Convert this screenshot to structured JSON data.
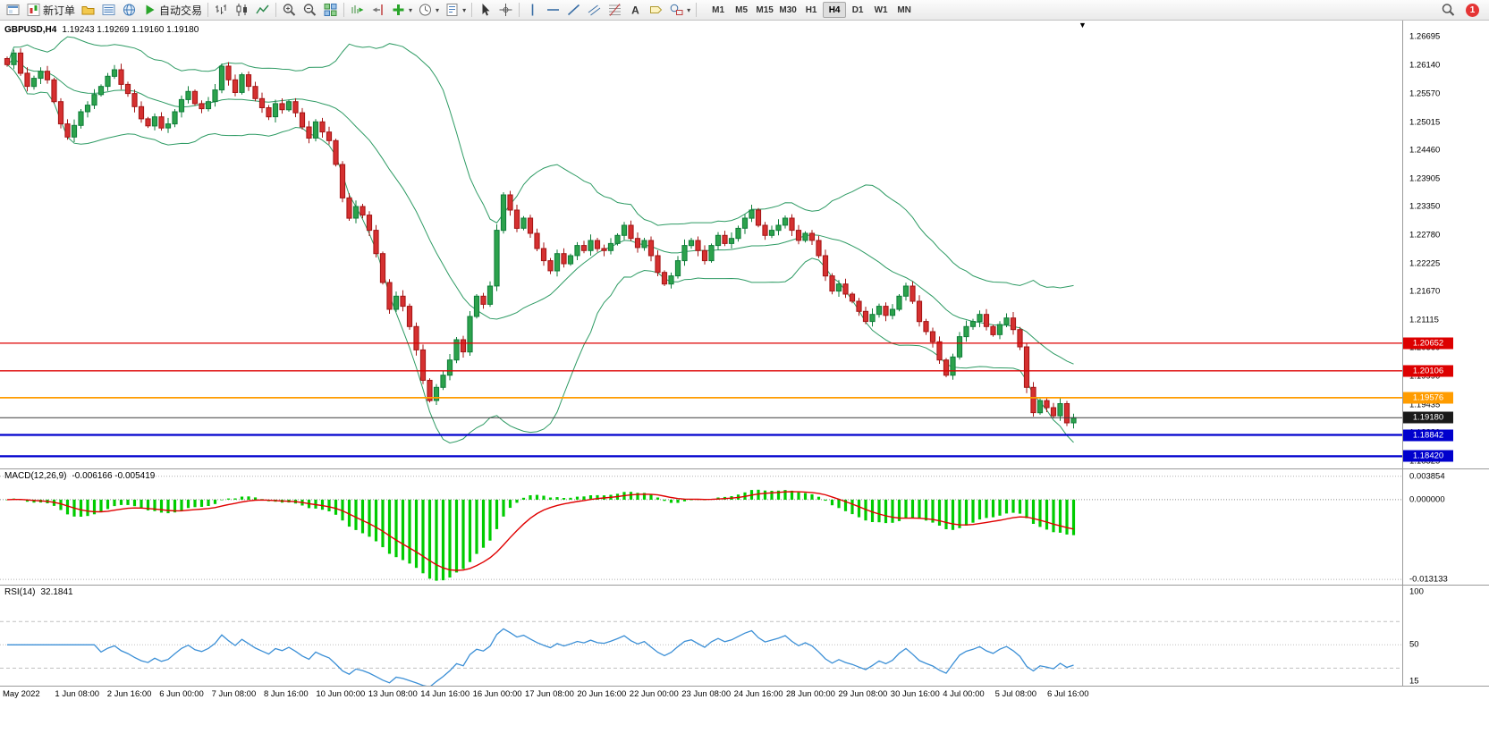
{
  "toolbar": {
    "caret_glyph": "▾",
    "notification_count": "1",
    "timeframes": [
      "M1",
      "M5",
      "M15",
      "M30",
      "H1",
      "H4",
      "D1",
      "W1",
      "MN"
    ],
    "active_timeframe": "H4",
    "items": [
      {
        "name": "terminal-button",
        "icon": "terminal"
      },
      {
        "name": "new-order-button",
        "icon": "newOrder",
        "label": "新订单"
      },
      {
        "name": "profiles-button",
        "icon": "profiles"
      },
      {
        "name": "market-watch-button",
        "icon": "marketwatch"
      },
      {
        "name": "community-button",
        "icon": "globe"
      },
      {
        "name": "auto-trading-button",
        "icon": "play",
        "label": "自动交易"
      },
      {
        "sep": true
      },
      {
        "name": "bar-chart-button",
        "icon": "bars"
      },
      {
        "name": "candlestick-chart-button",
        "icon": "candles"
      },
      {
        "name": "line-chart-button",
        "icon": "linechart"
      },
      {
        "sep": true
      },
      {
        "name": "zoom-in-button",
        "icon": "zoomin"
      },
      {
        "name": "zoom-out-button",
        "icon": "zoomout"
      },
      {
        "name": "tile-windows-button",
        "icon": "tile"
      },
      {
        "sep": true
      },
      {
        "name": "auto-scroll-button",
        "icon": "autoscroll"
      },
      {
        "name": "chart-shift-button",
        "icon": "shift"
      },
      {
        "name": "add-indicator-button",
        "icon": "plus",
        "caret": true
      },
      {
        "name": "period-button",
        "icon": "clock",
        "caret": true
      },
      {
        "name": "template-button",
        "icon": "template",
        "caret": true
      },
      {
        "sep": true
      },
      {
        "name": "cursor-button",
        "icon": "cursor"
      },
      {
        "name": "crosshair-button",
        "icon": "crosshair"
      },
      {
        "sep": true
      },
      {
        "name": "vertical-line-button",
        "icon": "vline"
      },
      {
        "name": "horizontal-line-button",
        "icon": "hline"
      },
      {
        "name": "trendline-button",
        "icon": "trend"
      },
      {
        "name": "channel-button",
        "icon": "channel"
      },
      {
        "name": "fibonacci-button",
        "icon": "fib"
      },
      {
        "name": "text-button",
        "icon": "textA"
      },
      {
        "name": "label-button",
        "icon": "labelTag"
      },
      {
        "name": "shapes-button",
        "icon": "shapes",
        "caret": true
      },
      {
        "sep": true
      }
    ]
  },
  "chart": {
    "symbol": "GBPUSD,H4",
    "ohlc_text": "1.19243 1.19269 1.19160 1.19180",
    "open": "1.19243",
    "high": "1.19269",
    "low": "1.19160",
    "close": "1.19180",
    "shift_marker_glyph": "▼"
  },
  "price_scale": {
    "labels": [
      "1.26695",
      "1.26140",
      "1.25570",
      "1.25015",
      "1.24460",
      "1.23905",
      "1.23350",
      "1.22780",
      "1.22225",
      "1.21670",
      "1.21115",
      "1.20560",
      "1.19990",
      "1.19435",
      "1.18880",
      "1.18325"
    ]
  },
  "badges": [
    {
      "label": "1.20652",
      "value": 1.20652,
      "color": "#dd0000"
    },
    {
      "label": "1.20106",
      "value": 1.20106,
      "color": "#dd0000"
    },
    {
      "label": "1.19576",
      "value": 1.19576,
      "color": "#ff9c00"
    },
    {
      "label": "1.19180",
      "value": 1.1918,
      "color": "#1a1a1a"
    },
    {
      "label": "1.18842",
      "value": 1.18842,
      "color": "#0000cd"
    },
    {
      "label": "1.18420",
      "value": 1.1842,
      "color": "#0000cd"
    }
  ],
  "hlines": [
    {
      "price": 1.20652,
      "color": "#dd0000",
      "width": 1.3
    },
    {
      "price": 1.20106,
      "color": "#dd0000",
      "width": 1.3
    },
    {
      "price": 1.19576,
      "color": "#ff9c00",
      "width": 1.8
    },
    {
      "price": 1.1918,
      "color": "#3a3a3a",
      "width": 1
    },
    {
      "price": 1.18842,
      "color": "#0000cd",
      "width": 2.2
    },
    {
      "price": 1.1842,
      "color": "#0000cd",
      "width": 2.2
    }
  ],
  "macd": {
    "label": "MACD(12,26,9)",
    "values": "-0.006166 -0.005419",
    "scale_labels": [
      "0.003854",
      "0.000000",
      "-0.013133"
    ],
    "fast": 12,
    "slow": 26,
    "signal": 9
  },
  "rsi": {
    "label": "RSI(14)",
    "value": "32.1841",
    "period": 14,
    "scale_labels": [
      "100",
      "50",
      "15"
    ],
    "levels": [
      70,
      50,
      30
    ]
  },
  "time_axis": {
    "labels": [
      "May 2022",
      "1 Jun 08:00",
      "2 Jun 16:00",
      "6 Jun 00:00",
      "7 Jun 08:00",
      "8 Jun 16:00",
      "10 Jun 00:00",
      "13 Jun 08:00",
      "14 Jun 16:00",
      "16 Jun 00:00",
      "17 Jun 08:00",
      "20 Jun 16:00",
      "22 Jun 00:00",
      "23 Jun 08:00",
      "24 Jun 16:00",
      "28 Jun 00:00",
      "29 Jun 08:00",
      "30 Jun 16:00",
      "4 Jul 00:00",
      "5 Jul 08:00",
      "6 Jul 16:00"
    ]
  },
  "colors": {
    "bull": "#2ca24c",
    "bull_border": "#0e7d38",
    "bear": "#d53030",
    "bear_border": "#a31515",
    "bands": "#2e9b64",
    "macd_hist": "#00cc00",
    "macd_signal": "#e00000",
    "rsi_line": "#3b8fd6",
    "grid": "#b0b0b0",
    "panel_border": "#9a9a9a"
  },
  "chart_data": {
    "type": "candlestick",
    "symbol": "GBPUSD",
    "timeframe": "H4",
    "title": "GBPUSD,H4 with Bollinger Bands, MACD(12,26,9), RSI(14)",
    "ohlc_current": {
      "open": 1.19243,
      "high": 1.19269,
      "low": 1.1916,
      "close": 1.1918
    },
    "y_range": [
      1.1818,
      1.2702
    ],
    "bands": {
      "period": 20,
      "deviation": 2
    },
    "macd_current": {
      "macd": -0.006166,
      "signal": -0.005419
    },
    "rsi_current": 32.1841,
    "closes": [
      1.2615,
      1.2638,
      1.2598,
      1.2572,
      1.2588,
      1.2602,
      1.2585,
      1.2542,
      1.2498,
      1.2472,
      1.2495,
      1.2522,
      1.2535,
      1.2556,
      1.2572,
      1.2592,
      1.2605,
      1.2576,
      1.2558,
      1.2532,
      1.2508,
      1.2494,
      1.2512,
      1.249,
      1.2498,
      1.2522,
      1.2546,
      1.2562,
      1.2538,
      1.2528,
      1.2542,
      1.2565,
      1.2612,
      1.2585,
      1.256,
      1.2595,
      1.2572,
      1.2548,
      1.253,
      1.2512,
      1.2538,
      1.2526,
      1.2542,
      1.252,
      1.2492,
      1.247,
      1.2502,
      1.2482,
      1.2465,
      1.2418,
      1.2352,
      1.2312,
      1.2335,
      1.2318,
      1.2288,
      1.2242,
      1.2185,
      1.2132,
      1.2158,
      1.2138,
      1.2098,
      1.2052,
      1.1992,
      1.1952,
      1.1978,
      1.2002,
      1.2032,
      1.2072,
      1.2048,
      1.2118,
      1.2158,
      1.2142,
      1.2178,
      1.2288,
      1.2358,
      1.2328,
      1.2292,
      1.2312,
      1.2282,
      1.2252,
      1.2228,
      1.2208,
      1.2242,
      1.2222,
      1.2238,
      1.2258,
      1.2248,
      1.2268,
      1.2252,
      1.2248,
      1.2262,
      1.2278,
      1.2298,
      1.2272,
      1.2254,
      1.2268,
      1.2238,
      1.2205,
      1.2182,
      1.2198,
      1.2228,
      1.2258,
      1.2268,
      1.2248,
      1.2228,
      1.2258,
      1.2278,
      1.2262,
      1.2272,
      1.2292,
      1.2312,
      1.2328,
      1.2298,
      1.2278,
      1.2288,
      1.2298,
      1.2312,
      1.2288,
      1.2268,
      1.2282,
      1.2268,
      1.2238,
      1.2198,
      1.2168,
      1.2182,
      1.2162,
      1.2148,
      1.2128,
      1.2108,
      1.2122,
      1.2138,
      1.212,
      1.2132,
      1.2158,
      1.2178,
      1.2148,
      1.2108,
      1.2088,
      1.2068,
      1.2032,
      1.2002,
      1.2038,
      1.2078,
      1.2098,
      1.2108,
      1.2122,
      1.2098,
      1.2082,
      1.2102,
      1.2115,
      1.2092,
      1.2058,
      1.1978,
      1.1928,
      1.1952,
      1.1938,
      1.1922,
      1.1946,
      1.1908,
      1.1918
    ]
  }
}
